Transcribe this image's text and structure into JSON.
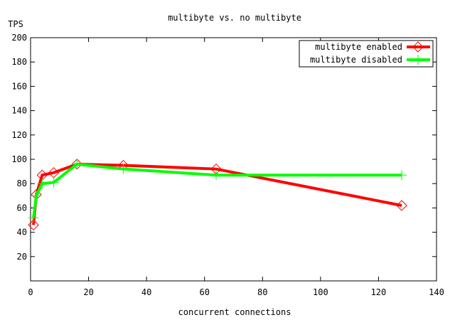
{
  "chart_data": {
    "type": "line",
    "title": "multibyte vs. no multibyte",
    "xlabel": "concurrent connections",
    "ylabel": "TPS",
    "xlim": [
      0,
      140
    ],
    "ylim": [
      0,
      200
    ],
    "xticks": [
      "0",
      "20",
      "40",
      "60",
      "80",
      "100",
      "120",
      "140"
    ],
    "yticks": [
      "20",
      "40",
      "60",
      "80",
      "100",
      "120",
      "140",
      "160",
      "180",
      "200"
    ],
    "legend_position": "top-right",
    "grid": false,
    "series": [
      {
        "name": "multibyte enabled",
        "color": "#ff0000",
        "marker": "diamond",
        "x": [
          1,
          2,
          4,
          8,
          16,
          32,
          64,
          128
        ],
        "y": [
          46,
          71,
          87,
          89,
          96,
          95,
          92,
          62
        ]
      },
      {
        "name": "multibyte disabled",
        "color": "#00ff00",
        "marker": "plus",
        "x": [
          1,
          2,
          4,
          8,
          16,
          32,
          64,
          128
        ],
        "y": [
          52,
          70,
          80,
          81,
          96,
          92,
          87,
          87
        ]
      }
    ]
  }
}
